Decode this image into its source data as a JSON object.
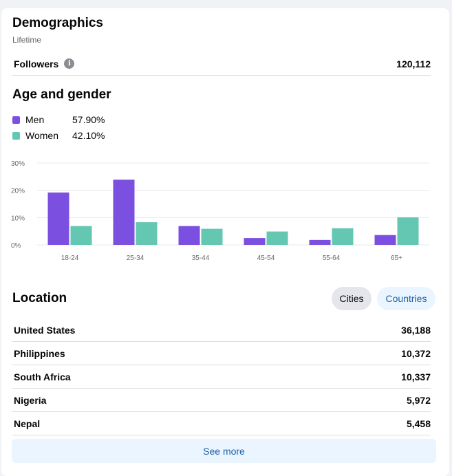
{
  "demographics": {
    "title": "Demographics",
    "subtitle": "Lifetime",
    "followers_label": "Followers",
    "followers_value": "120,112",
    "info_icon": "info-icon"
  },
  "age_gender": {
    "title": "Age and gender",
    "legend": [
      {
        "label": "Men",
        "value": "57.90%",
        "color": "#7b4fe0"
      },
      {
        "label": "Women",
        "value": "42.10%",
        "color": "#63c7b2"
      }
    ]
  },
  "chart_data": {
    "type": "bar",
    "categories": [
      "18-24",
      "25-34",
      "35-44",
      "45-54",
      "55-64",
      "65+"
    ],
    "series": [
      {
        "name": "Men",
        "values": [
          19.2,
          23.9,
          6.9,
          2.5,
          1.8,
          3.6
        ],
        "color": "#7b4fe0"
      },
      {
        "name": "Women",
        "values": [
          6.9,
          8.3,
          5.9,
          4.9,
          6.1,
          10.1
        ],
        "color": "#63c7b2"
      }
    ],
    "yticks": [
      "30%",
      "20%",
      "10%",
      "0%"
    ],
    "ylim": [
      0,
      30
    ],
    "grid": true
  },
  "location": {
    "title": "Location",
    "tab_cities": "Cities",
    "tab_countries": "Countries",
    "rows": [
      {
        "name": "United States",
        "value": "36,188"
      },
      {
        "name": "Philippines",
        "value": "10,372"
      },
      {
        "name": "South Africa",
        "value": "10,337"
      },
      {
        "name": "Nigeria",
        "value": "5,972"
      },
      {
        "name": "Nepal",
        "value": "5,458"
      }
    ],
    "see_more": "See more"
  }
}
